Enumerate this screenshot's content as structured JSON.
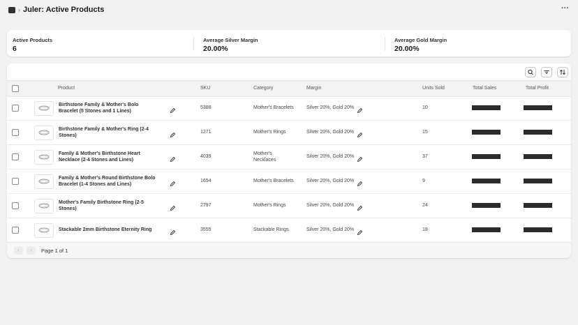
{
  "header": {
    "title": "Juler: Active Products"
  },
  "stats": [
    {
      "label": "Active Products",
      "value": "6"
    },
    {
      "label": "Average Silver Margin",
      "value": "20.00%"
    },
    {
      "label": "Average Gold Margin",
      "value": "20.00%"
    }
  ],
  "table": {
    "columns": [
      "Product",
      "SKU",
      "Category",
      "Margin",
      "Units Sold",
      "Total Sales",
      "Total Profit"
    ],
    "rows": [
      {
        "product": "Birthstone Family & Mother's Bolo Bracelet (5 Stones and 1 Lines)",
        "sku": "5388",
        "category": "Mother's Bracelets",
        "margin": "Silver 20%, Gold 20%",
        "units": 10
      },
      {
        "product": "Birthstone Family & Mother's Ring (2-4 Stones)",
        "sku": "1271",
        "category": "Mother's Rings",
        "margin": "Silver 20%, Gold 20%",
        "units": 15
      },
      {
        "product": "Family & Mother's Birthstone Heart Necklace (2-4 Stones and Lines)",
        "sku": "4039",
        "category": "Mother's Necklaces",
        "margin": "Silver 20%, Gold 20%",
        "units": 37
      },
      {
        "product": "Family & Mother's Round Birthstone Bolo Bracelet (1-4 Stones and Lines)",
        "sku": "1654",
        "category": "Mother's Bracelets",
        "margin": "Silver 20%, Gold 20%",
        "units": 9
      },
      {
        "product": "Mother's Family Birthstone Ring (2-5 Stones)",
        "sku": "2797",
        "category": "Mother's Rings",
        "margin": "Silver 20%, Gold 20%",
        "units": 24
      },
      {
        "product": "Stackable 2mm Birthstone Eternity Ring",
        "sku": "3555",
        "category": "Stackable Rings",
        "margin": "Silver 20%, Gold 20%",
        "units": 18
      }
    ]
  },
  "pagination": {
    "label": "Page 1 of 1"
  }
}
